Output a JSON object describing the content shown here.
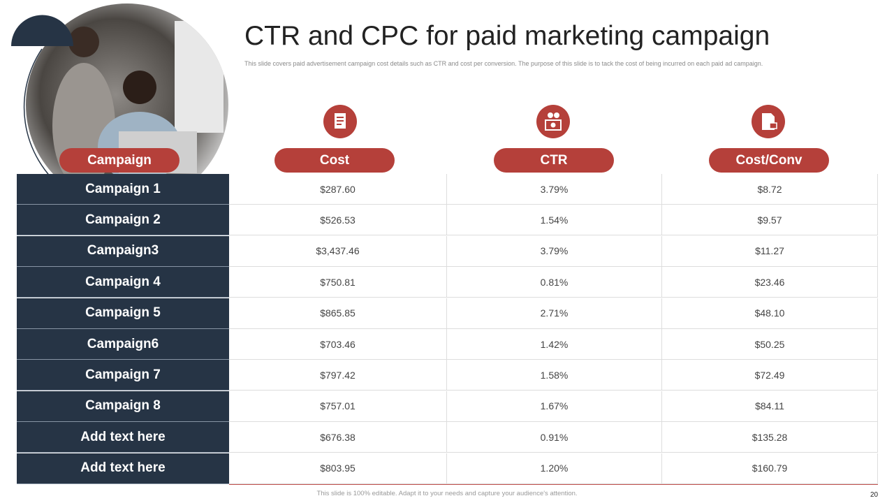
{
  "header": {
    "title": "CTR and CPC for paid marketing campaign",
    "subtitle": "This slide covers paid advertisement campaign cost details such as CTR and cost per conversion. The purpose of this slide is to tack the cost of being incurred on each paid ad campaign."
  },
  "table": {
    "columns": [
      "Campaign",
      "Cost",
      "CTR",
      "Cost/Conv"
    ],
    "rows": [
      [
        "Campaign 1",
        "$287.60",
        "3.79%",
        "$8.72"
      ],
      [
        "Campaign 2",
        "$526.53",
        "1.54%",
        "$9.57"
      ],
      [
        "Campaign3",
        "$3,437.46",
        "3.79%",
        "$11.27"
      ],
      [
        "Campaign 4",
        "$750.81",
        "0.81%",
        "$23.46"
      ],
      [
        "Campaign 5",
        "$865.85",
        "2.71%",
        "$48.10"
      ],
      [
        "Campaign6",
        "$703.46",
        "1.42%",
        "$50.25"
      ],
      [
        "Campaign 7",
        "$797.42",
        "1.58%",
        "$72.49"
      ],
      [
        "Campaign 8",
        "$757.01",
        "1.67%",
        "$84.11"
      ],
      [
        "Add text here",
        "$676.38",
        "0.91%",
        "$135.28"
      ],
      [
        "Add text here",
        "$803.95",
        "1.20%",
        "$160.79"
      ]
    ]
  },
  "footer": {
    "note": "This slide is 100% editable. Adapt it to your needs and capture your audience's attention.",
    "page_number": "20"
  }
}
